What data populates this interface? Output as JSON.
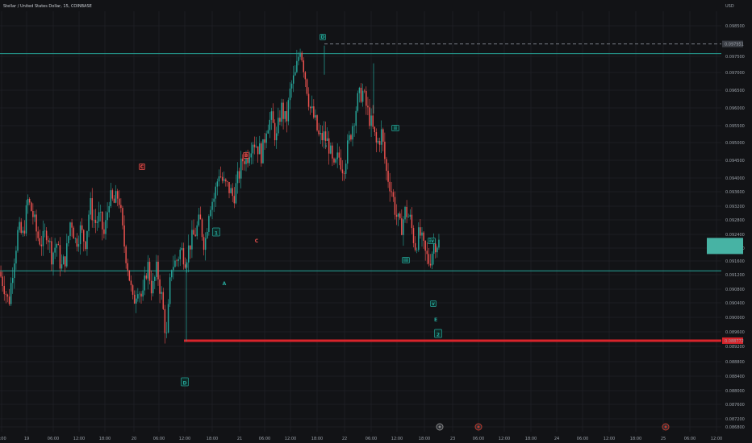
{
  "chart_data": {
    "type": "candlestick",
    "title": "Stellar / United States Dollar, 15, COINBASE",
    "currency": "USD",
    "ylim": [
      0.0868,
      0.0988
    ],
    "y_ticks": [
      "0.098500",
      "0.097500",
      "0.097000",
      "0.096500",
      "0.096000",
      "0.095500",
      "0.095000",
      "0.094500",
      "0.094000",
      "0.093600",
      "0.093200",
      "0.092800",
      "0.092400",
      "0.092000",
      "0.091600",
      "0.091200",
      "0.090800",
      "0.090400",
      "0.090000",
      "0.089600",
      "0.089200",
      "0.088800",
      "0.088400",
      "0.088000",
      "0.087600",
      "0.087200",
      "0.086800"
    ],
    "x_ticks": [
      "3:00",
      "19",
      "06:00",
      "12:00",
      "18:00",
      "20",
      "06:00",
      "12:00",
      "18:00",
      "21",
      "06:00",
      "12:00",
      "18:00",
      "22",
      "06:00",
      "12:00",
      "18:00",
      "23",
      "06:00",
      "12:00",
      "18:00",
      "24",
      "06:00",
      "12:00",
      "18:00",
      "25",
      "06:00",
      "12:00"
    ],
    "price_labels": {
      "high_marker": "0.097951",
      "low_marker": "0.088772"
    },
    "levels": {
      "resistance": 0.09765,
      "support": 0.09093,
      "low": 0.08877,
      "high_dashed": 0.09795
    },
    "current_price_box": {
      "low": 0.09145,
      "high": 0.09195
    },
    "colors": {
      "up": "#26a69a",
      "down": "#ef5350",
      "level": "#26a69a",
      "low_line": "#d9242b",
      "bg": "#121316"
    },
    "wave_labels": [
      {
        "text": "C",
        "color": "red",
        "boxed": true
      },
      {
        "text": "B",
        "color": "red",
        "boxed": true
      },
      {
        "text": "C",
        "color": "red",
        "boxed": false
      },
      {
        "text": "1",
        "color": "green",
        "boxed": true
      },
      {
        "text": "A",
        "color": "green",
        "boxed": false
      },
      {
        "text": "D",
        "color": "green",
        "boxed": true
      },
      {
        "text": "D",
        "color": "green",
        "boxed": true
      },
      {
        "text": "i",
        "color": "green",
        "boxed": false
      },
      {
        "text": "ii",
        "color": "green",
        "boxed": true
      },
      {
        "text": "iii",
        "color": "green",
        "boxed": true
      },
      {
        "text": "iv",
        "color": "green",
        "boxed": true
      },
      {
        "text": "v",
        "color": "green",
        "boxed": true
      },
      {
        "text": "E",
        "color": "green",
        "boxed": false
      },
      {
        "text": "2",
        "color": "green",
        "boxed": true
      }
    ],
    "path": [
      0.0909,
      0.0905,
      0.0899,
      0.0912,
      0.0922,
      0.092,
      0.0931,
      0.0927,
      0.092,
      0.0918,
      0.0922,
      0.0914,
      0.0918,
      0.091,
      0.0914,
      0.0926,
      0.0918,
      0.0922,
      0.0918,
      0.093,
      0.0924,
      0.0926,
      0.092,
      0.0932,
      0.093,
      0.0933,
      0.0919,
      0.091,
      0.0899,
      0.0905,
      0.09,
      0.0912,
      0.0903,
      0.091,
      0.0901,
      0.0888,
      0.0911,
      0.0912,
      0.0916,
      0.0913,
      0.0918,
      0.0921,
      0.0925,
      0.0917,
      0.093,
      0.0932,
      0.094,
      0.0936,
      0.0935,
      0.0932,
      0.0938,
      0.0944,
      0.0945,
      0.095,
      0.0948,
      0.0945,
      0.0955,
      0.0956,
      0.095,
      0.096,
      0.0955,
      0.0966,
      0.097,
      0.0979,
      0.097,
      0.096,
      0.0956,
      0.095,
      0.0951,
      0.0948,
      0.094,
      0.0945,
      0.0941,
      0.0948,
      0.0955,
      0.0962,
      0.0965,
      0.0959,
      0.0954,
      0.0948,
      0.0952,
      0.094,
      0.0935,
      0.0927,
      0.0922,
      0.0928,
      0.0925,
      0.0917,
      0.0921,
      0.0915,
      0.0912,
      0.0918,
      0.0918
    ],
    "price_scale_icons": [
      "event-icon",
      "event-icon",
      "event-icon"
    ]
  }
}
